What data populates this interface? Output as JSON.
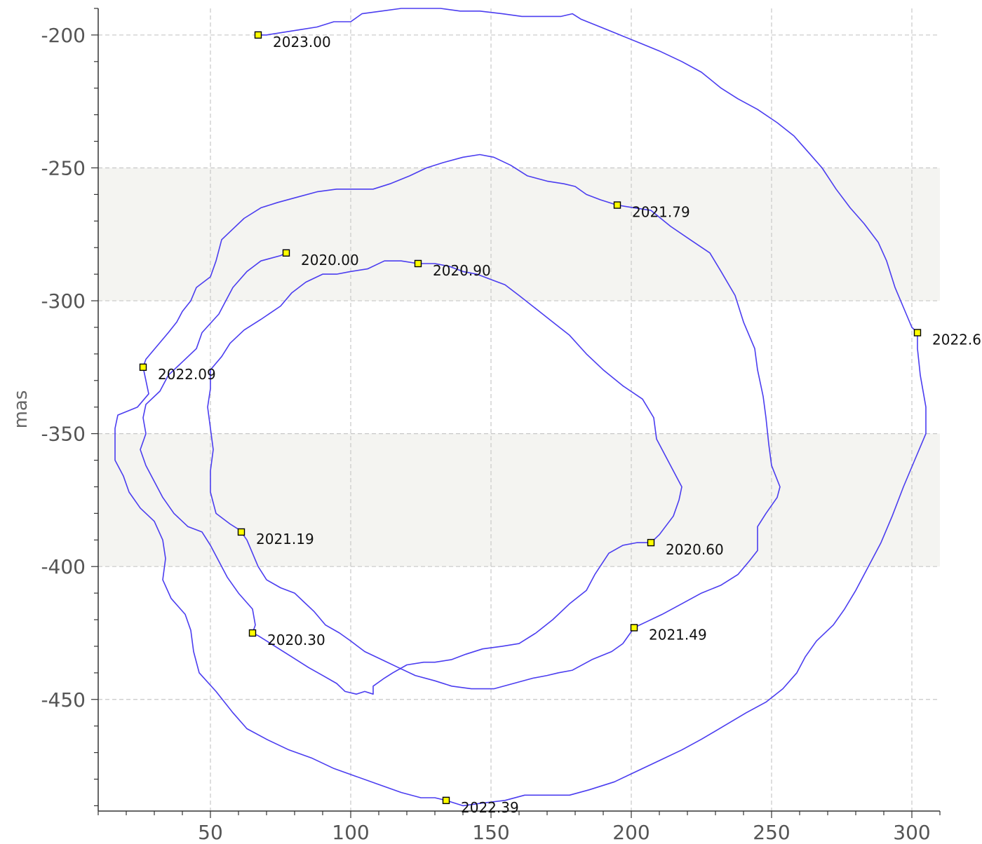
{
  "chart_data": {
    "type": "line",
    "title": "",
    "xlabel": "",
    "ylabel": "mas",
    "xlim": [
      10,
      310
    ],
    "ylim": [
      -190,
      -492
    ],
    "grid": true,
    "x_ticks": [
      50,
      100,
      150,
      200,
      250,
      300
    ],
    "y_ticks": [
      -200,
      -250,
      -300,
      -350,
      -400,
      -450
    ],
    "y_bands": [
      [
        -250,
        -300
      ],
      [
        -350,
        -400
      ]
    ],
    "colors": {
      "line": "#4b3df0",
      "marker_fill": "#ffff00",
      "marker_edge": "#000000",
      "band": "#f4f4f1",
      "grid": "#c8c8c8"
    },
    "series": [
      {
        "points": [
          [
            77,
            -282
          ],
          [
            75,
            -283
          ],
          [
            68,
            -285
          ],
          [
            63,
            -289
          ],
          [
            58,
            -295
          ],
          [
            55,
            -301
          ],
          [
            53,
            -305
          ],
          [
            47,
            -312
          ],
          [
            45,
            -318
          ],
          [
            40,
            -323
          ],
          [
            35,
            -328
          ],
          [
            32,
            -334
          ],
          [
            27,
            -339
          ],
          [
            26,
            -344
          ],
          [
            27,
            -350
          ],
          [
            25,
            -356
          ],
          [
            27,
            -362
          ],
          [
            30,
            -368
          ],
          [
            33,
            -374
          ],
          [
            37,
            -380
          ],
          [
            42,
            -385
          ],
          [
            47,
            -387
          ],
          [
            50,
            -392
          ],
          [
            53,
            -398
          ],
          [
            56,
            -404
          ],
          [
            60,
            -410
          ],
          [
            65,
            -416
          ],
          [
            66,
            -422
          ],
          [
            65,
            -425
          ],
          [
            67,
            -426
          ],
          [
            73,
            -430
          ],
          [
            79,
            -434
          ],
          [
            85,
            -438
          ],
          [
            90,
            -441
          ],
          [
            95,
            -444
          ],
          [
            98,
            -447
          ],
          [
            102,
            -448
          ],
          [
            105,
            -447
          ],
          [
            108,
            -448
          ],
          [
            108,
            -445
          ],
          [
            112,
            -442
          ],
          [
            115,
            -440
          ],
          [
            120,
            -437
          ],
          [
            126,
            -436
          ],
          [
            130,
            -436
          ],
          [
            136,
            -435
          ],
          [
            141,
            -433
          ],
          [
            147,
            -431
          ],
          [
            154,
            -430
          ],
          [
            160,
            -429
          ],
          [
            166,
            -425
          ],
          [
            172,
            -420
          ],
          [
            178,
            -414
          ],
          [
            184,
            -409
          ],
          [
            187,
            -403
          ],
          [
            192,
            -395
          ],
          [
            197,
            -392
          ],
          [
            202,
            -391
          ],
          [
            207,
            -391
          ],
          [
            210,
            -388
          ],
          [
            215,
            -381
          ],
          [
            217,
            -375
          ],
          [
            218,
            -370
          ],
          [
            215,
            -364
          ],
          [
            212,
            -358
          ],
          [
            209,
            -352
          ],
          [
            208,
            -344
          ],
          [
            204,
            -337
          ],
          [
            197,
            -332
          ],
          [
            190,
            -326
          ],
          [
            184,
            -320
          ],
          [
            178,
            -313
          ],
          [
            172,
            -308
          ],
          [
            166,
            -303
          ],
          [
            160,
            -298
          ],
          [
            155,
            -294
          ],
          [
            150,
            -292
          ],
          [
            145,
            -290
          ],
          [
            140,
            -289
          ],
          [
            135,
            -287
          ],
          [
            130,
            -286
          ],
          [
            124,
            -286
          ],
          [
            118,
            -285
          ],
          [
            112,
            -285
          ],
          [
            106,
            -288
          ],
          [
            100,
            -289
          ],
          [
            95,
            -290
          ],
          [
            90,
            -290
          ],
          [
            84,
            -293
          ],
          [
            79,
            -297
          ],
          [
            75,
            -302
          ],
          [
            68,
            -307
          ],
          [
            62,
            -311
          ],
          [
            57,
            -316
          ],
          [
            54,
            -321
          ],
          [
            50,
            -326
          ],
          [
            50,
            -333
          ],
          [
            49,
            -340
          ],
          [
            50,
            -348
          ],
          [
            51,
            -356
          ],
          [
            50,
            -364
          ],
          [
            50,
            -372
          ],
          [
            52,
            -380
          ],
          [
            57,
            -384
          ],
          [
            60,
            -386
          ],
          [
            61,
            -387
          ],
          [
            63,
            -390
          ],
          [
            65,
            -395
          ],
          [
            67,
            -400
          ],
          [
            70,
            -405
          ],
          [
            75,
            -408
          ],
          [
            80,
            -410
          ],
          [
            83,
            -413
          ],
          [
            87,
            -417
          ],
          [
            91,
            -422
          ],
          [
            96,
            -425
          ],
          [
            100,
            -428
          ],
          [
            105,
            -432
          ],
          [
            111,
            -435
          ],
          [
            117,
            -438
          ],
          [
            123,
            -441
          ],
          [
            130,
            -443
          ],
          [
            136,
            -445
          ],
          [
            143,
            -446
          ],
          [
            151,
            -446
          ],
          [
            158,
            -444
          ],
          [
            165,
            -442
          ],
          [
            170,
            -441
          ],
          [
            174,
            -440
          ],
          [
            179,
            -439
          ],
          [
            186,
            -435
          ],
          [
            193,
            -432
          ],
          [
            197,
            -429
          ],
          [
            201,
            -423
          ],
          [
            205,
            -421
          ],
          [
            211,
            -418
          ],
          [
            218,
            -414
          ],
          [
            225,
            -410
          ],
          [
            232,
            -407
          ],
          [
            238,
            -403
          ],
          [
            242,
            -398
          ],
          [
            245,
            -394
          ],
          [
            245,
            -385
          ],
          [
            248,
            -380
          ],
          [
            252,
            -374
          ],
          [
            253,
            -370
          ],
          [
            250,
            -362
          ],
          [
            249,
            -354
          ],
          [
            248,
            -344
          ],
          [
            247,
            -336
          ],
          [
            245,
            -326
          ],
          [
            244,
            -318
          ],
          [
            240,
            -308
          ],
          [
            237,
            -298
          ],
          [
            232,
            -289
          ],
          [
            228,
            -282
          ],
          [
            221,
            -277
          ],
          [
            214,
            -272
          ],
          [
            207,
            -266
          ],
          [
            201,
            -265
          ],
          [
            195,
            -264
          ],
          [
            189,
            -262
          ],
          [
            184,
            -260
          ],
          [
            180,
            -257
          ],
          [
            176,
            -256
          ],
          [
            170,
            -255
          ],
          [
            163,
            -253
          ],
          [
            157,
            -249
          ],
          [
            151,
            -246
          ],
          [
            146,
            -245
          ],
          [
            140,
            -246
          ],
          [
            133,
            -248
          ],
          [
            127,
            -250
          ],
          [
            121,
            -253
          ],
          [
            114,
            -256
          ],
          [
            108,
            -258
          ],
          [
            102,
            -258
          ],
          [
            95,
            -258
          ],
          [
            88,
            -259
          ],
          [
            81,
            -261
          ],
          [
            74,
            -263
          ],
          [
            68,
            -265
          ],
          [
            62,
            -269
          ],
          [
            58,
            -273
          ],
          [
            54,
            -277
          ],
          [
            52,
            -285
          ],
          [
            50,
            -291
          ],
          [
            45,
            -295
          ],
          [
            43,
            -300
          ],
          [
            40,
            -304
          ],
          [
            38,
            -308
          ],
          [
            35,
            -312
          ],
          [
            31,
            -317
          ],
          [
            27,
            -322
          ],
          [
            26,
            -325
          ],
          [
            27,
            -330
          ],
          [
            28,
            -335
          ],
          [
            24,
            -340
          ],
          [
            17,
            -343
          ],
          [
            16,
            -348
          ],
          [
            16,
            -354
          ],
          [
            16,
            -360
          ],
          [
            19,
            -366
          ],
          [
            21,
            -372
          ],
          [
            25,
            -378
          ],
          [
            30,
            -383
          ],
          [
            33,
            -390
          ],
          [
            34,
            -397
          ],
          [
            33,
            -405
          ],
          [
            36,
            -412
          ],
          [
            41,
            -418
          ],
          [
            43,
            -424
          ],
          [
            44,
            -432
          ],
          [
            46,
            -440
          ],
          [
            52,
            -447
          ],
          [
            58,
            -455
          ],
          [
            63,
            -461
          ],
          [
            70,
            -465
          ],
          [
            78,
            -469
          ],
          [
            86,
            -472
          ],
          [
            94,
            -476
          ],
          [
            102,
            -479
          ],
          [
            110,
            -482
          ],
          [
            118,
            -485
          ],
          [
            125,
            -487
          ],
          [
            130,
            -487
          ],
          [
            134,
            -488
          ],
          [
            140,
            -490
          ],
          [
            147,
            -489
          ],
          [
            155,
            -488
          ],
          [
            162,
            -486
          ],
          [
            170,
            -486
          ],
          [
            178,
            -486
          ],
          [
            185,
            -484
          ],
          [
            194,
            -481
          ],
          [
            202,
            -477
          ],
          [
            210,
            -473
          ],
          [
            218,
            -469
          ],
          [
            225,
            -465
          ],
          [
            233,
            -460
          ],
          [
            241,
            -455
          ],
          [
            248,
            -451
          ],
          [
            254,
            -446
          ],
          [
            259,
            -440
          ],
          [
            262,
            -434
          ],
          [
            266,
            -428
          ],
          [
            272,
            -422
          ],
          [
            276,
            -416
          ],
          [
            280,
            -409
          ],
          [
            284,
            -401
          ],
          [
            289,
            -391
          ],
          [
            293,
            -381
          ],
          [
            297,
            -370
          ],
          [
            301,
            -360
          ],
          [
            305,
            -350
          ],
          [
            305,
            -340
          ],
          [
            303,
            -328
          ],
          [
            302,
            -318
          ],
          [
            302,
            -312
          ],
          [
            300,
            -310
          ],
          [
            298,
            -305
          ],
          [
            294,
            -295
          ],
          [
            291,
            -285
          ],
          [
            288,
            -278
          ],
          [
            283,
            -271
          ],
          [
            278,
            -265
          ],
          [
            273,
            -258
          ],
          [
            268,
            -250
          ],
          [
            263,
            -244
          ],
          [
            258,
            -238
          ],
          [
            252,
            -233
          ],
          [
            245,
            -228
          ],
          [
            238,
            -224
          ],
          [
            232,
            -220
          ],
          [
            225,
            -214
          ],
          [
            218,
            -210
          ],
          [
            210,
            -206
          ],
          [
            203,
            -203
          ],
          [
            196,
            -200
          ],
          [
            189,
            -197
          ],
          [
            182,
            -194
          ],
          [
            179,
            -192
          ],
          [
            175,
            -193
          ],
          [
            168,
            -193
          ],
          [
            161,
            -193
          ],
          [
            154,
            -192
          ],
          [
            146,
            -191
          ],
          [
            139,
            -191
          ],
          [
            132,
            -190
          ],
          [
            125,
            -190
          ],
          [
            118,
            -190
          ],
          [
            111,
            -191
          ],
          [
            104,
            -192
          ],
          [
            100,
            -195
          ],
          [
            94,
            -195
          ],
          [
            88,
            -197
          ],
          [
            82,
            -198
          ],
          [
            76,
            -199
          ],
          [
            70,
            -200
          ],
          [
            67,
            -200
          ]
        ]
      }
    ],
    "epochs": [
      {
        "label": "2020.00",
        "x": 77,
        "y": -282
      },
      {
        "label": "2020.30",
        "x": 65,
        "y": -425
      },
      {
        "label": "2020.60",
        "x": 207,
        "y": -391
      },
      {
        "label": "2020.90",
        "x": 124,
        "y": -286
      },
      {
        "label": "2021.19",
        "x": 61,
        "y": -387
      },
      {
        "label": "2021.49",
        "x": 201,
        "y": -423
      },
      {
        "label": "2021.79",
        "x": 195,
        "y": -264
      },
      {
        "label": "2022.09",
        "x": 26,
        "y": -325
      },
      {
        "label": "2022.39",
        "x": 134,
        "y": -488
      },
      {
        "label": "2022.6",
        "x": 302,
        "y": -312
      },
      {
        "label": "2023.00",
        "x": 67,
        "y": -200
      }
    ]
  }
}
